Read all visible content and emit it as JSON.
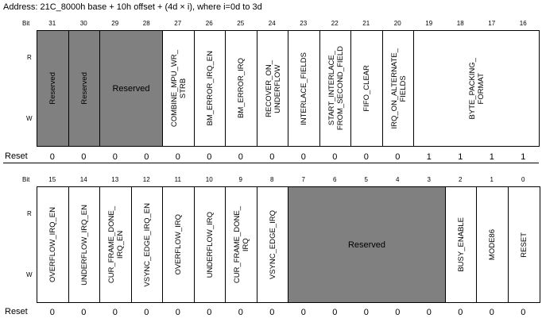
{
  "address": "Address: 21C_8000h base + 10h offset + (4d × i), where i=0d to 3d",
  "labels": {
    "bit": "Bit",
    "r": "R",
    "w": "W",
    "reset": "Reset"
  },
  "rows": [
    {
      "bits": [
        "31",
        "30",
        "29",
        "28",
        "27",
        "26",
        "25",
        "24",
        "23",
        "22",
        "21",
        "20",
        "19",
        "18",
        "17",
        "16"
      ],
      "reset": [
        "0",
        "0",
        "0",
        "0",
        "0",
        "0",
        "0",
        "0",
        "0",
        "0",
        "0",
        "0",
        "1",
        "1",
        "1",
        "1"
      ],
      "fields": [
        {
          "name": "Reserved",
          "span": 1,
          "gray": true,
          "orient": "v"
        },
        {
          "name": "Reserved",
          "span": 1,
          "gray": true,
          "orient": "v"
        },
        {
          "name": "Reserved",
          "span": 2,
          "gray": true,
          "orient": "h"
        },
        {
          "name": "COMBINE_MPU_WR_\nSTRB",
          "span": 1,
          "gray": false,
          "orient": "v"
        },
        {
          "name": "BM_ERROR_IRQ_EN",
          "span": 1,
          "gray": false,
          "orient": "v"
        },
        {
          "name": "BM_ERROR_IRQ",
          "span": 1,
          "gray": false,
          "orient": "v"
        },
        {
          "name": "RECOVER_ON_\nUNDERFLOW",
          "span": 1,
          "gray": false,
          "orient": "v"
        },
        {
          "name": "INTERLACE_FIELDS",
          "span": 1,
          "gray": false,
          "orient": "v"
        },
        {
          "name": "START_INTERLACE_\nFROM_SECOND_FIELD",
          "span": 1,
          "gray": false,
          "orient": "v"
        },
        {
          "name": "FIFO_CLEAR",
          "span": 1,
          "gray": false,
          "orient": "v"
        },
        {
          "name": "IRQ_ON_ALTERNATE_\nFIELDS",
          "span": 1,
          "gray": false,
          "orient": "v"
        },
        {
          "name": "BYTE_PACKING_\nFORMAT",
          "span": 4,
          "gray": false,
          "orient": "v"
        }
      ]
    },
    {
      "bits": [
        "15",
        "14",
        "13",
        "12",
        "11",
        "10",
        "9",
        "8",
        "7",
        "6",
        "5",
        "4",
        "3",
        "2",
        "1",
        "0"
      ],
      "reset": [
        "0",
        "0",
        "0",
        "0",
        "0",
        "0",
        "0",
        "0",
        "0",
        "0",
        "0",
        "0",
        "0",
        "0",
        "0",
        "0"
      ],
      "fields": [
        {
          "name": "OVERFLOW_IRQ_EN",
          "span": 1,
          "gray": false,
          "orient": "v"
        },
        {
          "name": "UNDERFLOW_IRQ_EN",
          "span": 1,
          "gray": false,
          "orient": "v"
        },
        {
          "name": "CUR_FRAME_DONE_\nIRQ_EN",
          "span": 1,
          "gray": false,
          "orient": "v"
        },
        {
          "name": "VSYNC_EDGE_IRQ_EN",
          "span": 1,
          "gray": false,
          "orient": "v"
        },
        {
          "name": "OVERFLOW_IRQ",
          "span": 1,
          "gray": false,
          "orient": "v"
        },
        {
          "name": "UNDERFLOW_IRQ",
          "span": 1,
          "gray": false,
          "orient": "v"
        },
        {
          "name": "CUR_FRAME_DONE_\nIRQ",
          "span": 1,
          "gray": false,
          "orient": "v"
        },
        {
          "name": "VSYNC_EDGE_IRQ",
          "span": 1,
          "gray": false,
          "orient": "v"
        },
        {
          "name": "Reserved",
          "span": 5,
          "gray": true,
          "orient": "h"
        },
        {
          "name": "BUSY_ENABLE",
          "span": 1,
          "gray": false,
          "orient": "v"
        },
        {
          "name": "MODE86",
          "span": 1,
          "gray": false,
          "orient": "v"
        },
        {
          "name": "RESET",
          "span": 1,
          "gray": false,
          "orient": "v"
        }
      ]
    }
  ]
}
